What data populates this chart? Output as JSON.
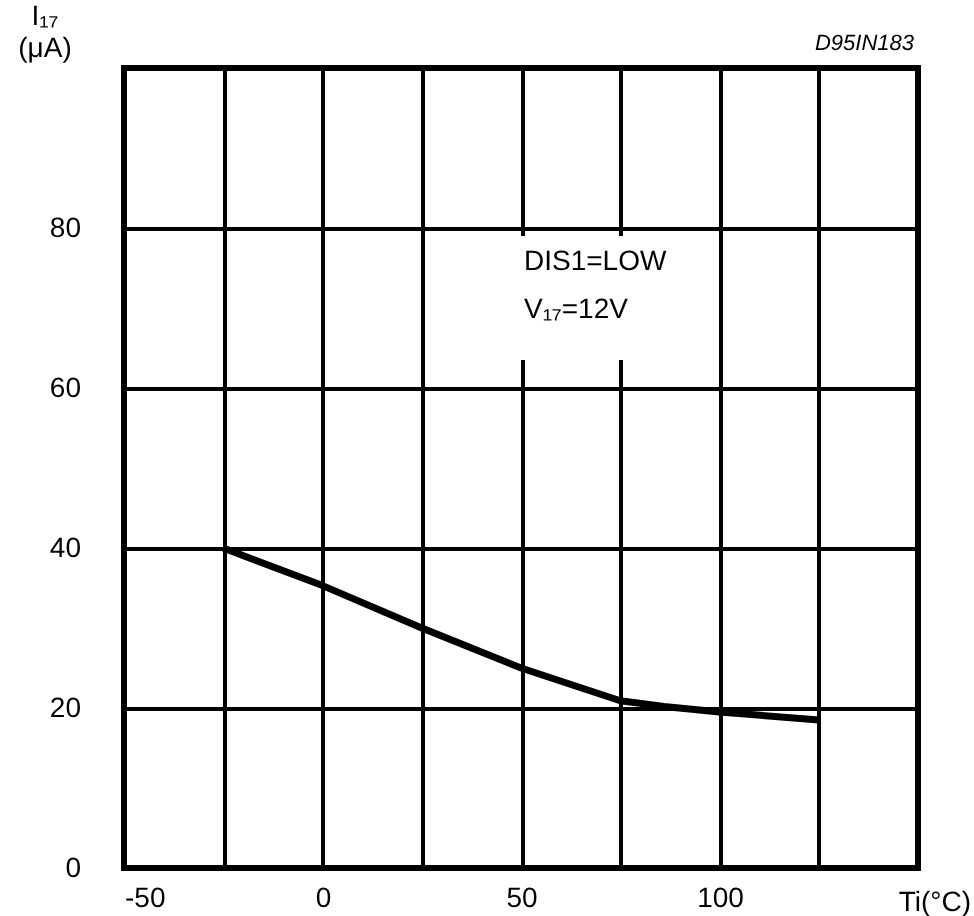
{
  "chart_data": {
    "type": "line",
    "xlabel": "Ti(°C)",
    "ylabel": "I₁₇ (μA)",
    "annotations": [
      "D95IN183",
      "DIS1=LOW",
      "V₁₇=12V"
    ],
    "x": [
      -25,
      0,
      25,
      50,
      75,
      86,
      100,
      125
    ],
    "series": [
      {
        "color": "#000000",
        "values": [
          40,
          35.3,
          30,
          25,
          20.9,
          20.2,
          19.5,
          18.5
        ]
      }
    ],
    "xlim": [
      -50,
      150
    ],
    "ylim": [
      0,
      100
    ],
    "xticks": [
      -50,
      {
        "value": -25,
        "label": null
      },
      0,
      {
        "value": 25,
        "label": null
      },
      50,
      {
        "value": 75,
        "label": null
      },
      100,
      {
        "value": 125,
        "label": null
      },
      {
        "value": 150,
        "label": null
      }
    ],
    "yticks": [
      0,
      20,
      40,
      60,
      80,
      {
        "value": 100,
        "label": null
      }
    ],
    "grid": true,
    "legend": false,
    "marker": "none",
    "line_style": "solid"
  }
}
